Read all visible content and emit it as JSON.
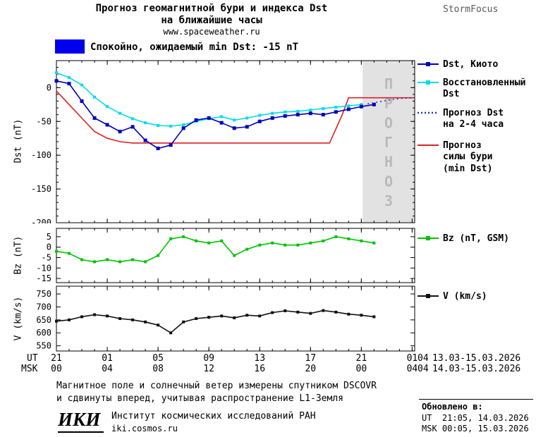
{
  "header": {
    "title_line1": "Прогноз геомагнитной бури и индекса Dst",
    "title_line2": "на ближайшие часы",
    "site": "www.spaceweather.ru",
    "brand": "StormFocus"
  },
  "status": {
    "text": "Спокойно, ожидаемый min Dst: -15 nT"
  },
  "colors": {
    "kyoto": "#0000bb",
    "reconstructed": "#00dde6",
    "forecast_dst": "#2233cc",
    "storm_forecast": "#dd2222",
    "bz": "#00c400",
    "v": "#111111",
    "band": "#e2e2e2",
    "band_text": "#b9b9b9",
    "status": "#0000ee",
    "brand_gray": "#5a5a5a"
  },
  "legend": {
    "kyoto": "Dst, Киото",
    "reconstructed": "Восстановленный\nDst",
    "forecast": "Прогноз Dst\nна 2-4 часа",
    "storm": "Прогноз\nсилы бури\n(min Dst)",
    "bz": "Bz (nT, GSM)",
    "v": "V (km/s)"
  },
  "xaxis": {
    "ut_label": "UT",
    "msk_label": "MSK",
    "tick_hours": [
      0,
      4,
      8,
      12,
      16,
      20,
      24,
      28
    ],
    "ut_ticks": [
      "21",
      "01",
      "05",
      "09",
      "13",
      "17",
      "21",
      "01"
    ],
    "msk_ticks": [
      "00",
      "04",
      "08",
      "12",
      "16",
      "20",
      "00",
      "04"
    ],
    "ut_edge": "04",
    "msk_edge": "04",
    "ut_date": "13.03-15.03.2026",
    "msk_date": "14.03-15.03.2026"
  },
  "footer": {
    "note_line1": "Магнитное поле и солнечный ветер измерены спутником DSCOVR",
    "note_line2": "и сдвинуты вперед, учитывая распространение L1-Земля",
    "logo": "ИКИ",
    "institute": "Институт космических исследований РАН",
    "institute_site": "iki.cosmos.ru",
    "updated_label": "Обновлено в:",
    "updated_ut": "UT  21:05, 14.03.2026",
    "updated_msk": "MSK 00:05, 15.03.2026"
  },
  "chart_data": {
    "type": "line",
    "title": "Прогноз геомагнитной бури и индекса Dst на ближайшие часы",
    "x_unit": "hours since 21:00 UT 13.03.2026",
    "panels": [
      {
        "id": "dst",
        "ylabel": "Dst (nT)",
        "ylim": [
          -200,
          40
        ],
        "yticks": [
          0,
          -50,
          -100,
          -150,
          -200
        ],
        "ytick_labels": [
          "0",
          "-50",
          "-100",
          "-150",
          "-200"
        ],
        "yminor": 10,
        "xlim": [
          0,
          28.2
        ],
        "xticks": [
          0,
          4,
          8,
          12,
          16,
          20,
          24,
          28
        ],
        "xminor": 1,
        "band": {
          "x_start": 24.1,
          "label": "ПРОГНОЗ"
        },
        "series": [
          {
            "name": "Прогноз силы бури (min Dst)",
            "color_key": "storm_forecast",
            "x": [
              0,
              1,
              2,
              3,
              4,
              5,
              6,
              21.5,
              22.5,
              23,
              28.2
            ],
            "values": [
              -5,
              -25,
              -45,
              -65,
              -75,
              -80,
              -82,
              -82,
              -40,
              -15,
              -15
            ]
          },
          {
            "name": "Восстановленный Dst",
            "color_key": "reconstructed",
            "marker": 4,
            "x_start": 0,
            "values": [
              22,
              15,
              4,
              -14,
              -28,
              -38,
              -46,
              -52,
              -56,
              -57,
              -55,
              -50,
              -46,
              -43,
              -48,
              -45,
              -41,
              -38,
              -36,
              -35,
              -33,
              -31,
              -29,
              -27,
              -25
            ]
          },
          {
            "name": "Dst, Киото",
            "color_key": "kyoto",
            "marker": 5,
            "x_start": 0,
            "values": [
              10,
              6,
              -20,
              -45,
              -55,
              -65,
              -58,
              -78,
              -90,
              -85,
              -60,
              -48,
              -45,
              -52,
              -60,
              -58,
              -50,
              -45,
              -42,
              -40,
              -38,
              -40,
              -36,
              -32,
              -28,
              -25
            ]
          },
          {
            "name": "Прогноз Dst на 2-4 часа",
            "color_key": "forecast_dst",
            "dash": "2,4",
            "x": [
              24.5,
              26,
              27,
              28.2
            ],
            "values": [
              -24,
              -19,
              -16,
              -15
            ]
          }
        ]
      },
      {
        "id": "bz",
        "ylabel": "Bz (nT)",
        "ylim": [
          -17,
          9
        ],
        "yticks": [
          5,
          0,
          -5,
          -10,
          -15
        ],
        "ytick_labels": [
          "5",
          "0",
          "-5",
          "-10",
          "-15"
        ],
        "xlim": [
          0,
          28.2
        ],
        "xticks": [
          0,
          4,
          8,
          12,
          16,
          20,
          24,
          28
        ],
        "xminor": 1,
        "series": [
          {
            "name": "Bz (nT, GSM)",
            "color_key": "bz",
            "marker": 4,
            "x_start": 0,
            "values": [
              -2,
              -3,
              -6,
              -7,
              -6,
              -7,
              -6,
              -7,
              -4,
              4,
              5,
              3,
              2,
              3,
              -4,
              -1,
              1,
              2,
              1,
              1,
              2,
              3,
              5,
              4,
              3,
              2
            ]
          }
        ]
      },
      {
        "id": "v",
        "ylabel": "V (km/s)",
        "ylim": [
          530,
          780
        ],
        "yticks": [
          750,
          700,
          650,
          600,
          550
        ],
        "ytick_labels": [
          "750",
          "700",
          "650",
          "600",
          "550"
        ],
        "xlim": [
          0,
          28.2
        ],
        "xticks": [
          0,
          4,
          8,
          12,
          16,
          20,
          24,
          28
        ],
        "xminor": 1,
        "series": [
          {
            "name": "V (km/s)",
            "color_key": "v",
            "marker": 4,
            "x_start": 0,
            "values": [
              645,
              650,
              662,
              670,
              665,
              655,
              650,
              642,
              630,
              600,
              642,
              655,
              660,
              665,
              658,
              668,
              665,
              678,
              685,
              680,
              675,
              686,
              680,
              672,
              668,
              662
            ]
          }
        ]
      }
    ]
  }
}
